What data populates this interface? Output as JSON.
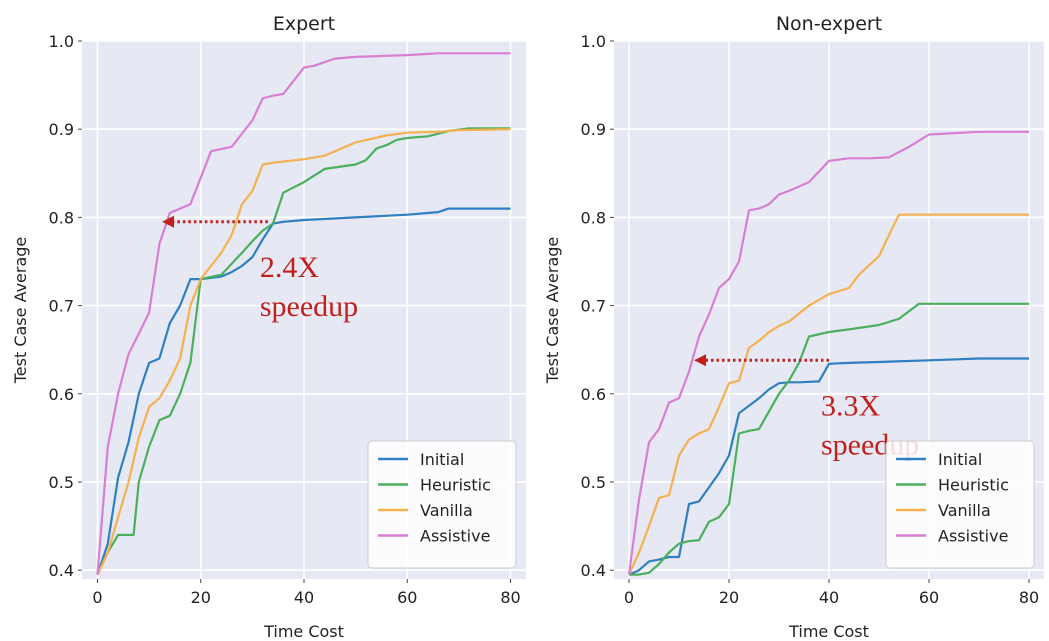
{
  "chart_data": [
    {
      "type": "line",
      "title": "Expert",
      "xlabel": "Time Cost",
      "ylabel": "Test Case Average",
      "xlim": [
        -3,
        83
      ],
      "ylim": [
        0.39,
        1.0
      ],
      "xticks": [
        0,
        20,
        40,
        60,
        80
      ],
      "yticks": [
        0.4,
        0.5,
        0.6,
        0.7,
        0.8,
        0.9,
        1.0
      ],
      "grid": true,
      "legend_position": "lower right",
      "series": [
        {
          "name": "Initial",
          "color": "#2f7fc1",
          "x": [
            0,
            2,
            4,
            6,
            8,
            10,
            12,
            14,
            16,
            18,
            20,
            24,
            26,
            28,
            30,
            32,
            34,
            36,
            40,
            50,
            60,
            66,
            68,
            70,
            80
          ],
          "y": [
            0.395,
            0.43,
            0.505,
            0.545,
            0.6,
            0.635,
            0.64,
            0.68,
            0.7,
            0.73,
            0.73,
            0.733,
            0.738,
            0.745,
            0.755,
            0.775,
            0.793,
            0.795,
            0.797,
            0.8,
            0.803,
            0.806,
            0.81,
            0.81,
            0.81
          ]
        },
        {
          "name": "Heuristic",
          "color": "#4caf5d",
          "x": [
            0,
            2,
            4,
            6,
            7,
            8,
            10,
            12,
            14,
            16,
            18,
            20,
            24,
            28,
            30,
            32,
            34,
            36,
            40,
            44,
            50,
            52,
            54,
            56,
            58,
            60,
            64,
            68,
            72,
            80
          ],
          "y": [
            0.395,
            0.42,
            0.44,
            0.44,
            0.44,
            0.5,
            0.54,
            0.57,
            0.575,
            0.6,
            0.635,
            0.73,
            0.735,
            0.76,
            0.773,
            0.785,
            0.793,
            0.828,
            0.84,
            0.855,
            0.86,
            0.865,
            0.878,
            0.882,
            0.888,
            0.89,
            0.892,
            0.898,
            0.901,
            0.901
          ]
        },
        {
          "name": "Vanilla",
          "color": "#f5b050",
          "x": [
            0,
            2,
            4,
            6,
            8,
            10,
            12,
            14,
            16,
            18,
            20,
            24,
            26,
            28,
            30,
            32,
            34,
            40,
            44,
            50,
            56,
            60,
            66,
            70,
            80
          ],
          "y": [
            0.395,
            0.42,
            0.46,
            0.5,
            0.55,
            0.585,
            0.595,
            0.615,
            0.64,
            0.7,
            0.73,
            0.76,
            0.78,
            0.815,
            0.83,
            0.86,
            0.862,
            0.866,
            0.87,
            0.885,
            0.893,
            0.896,
            0.897,
            0.899,
            0.9
          ]
        },
        {
          "name": "Assistive",
          "color": "#d77fd2",
          "x": [
            0,
            2,
            4,
            6,
            8,
            10,
            12,
            14,
            16,
            18,
            20,
            22,
            26,
            30,
            32,
            34,
            36,
            38,
            40,
            42,
            46,
            50,
            60,
            66,
            70,
            80
          ],
          "y": [
            0.395,
            0.54,
            0.6,
            0.645,
            0.668,
            0.692,
            0.77,
            0.805,
            0.81,
            0.815,
            0.845,
            0.875,
            0.88,
            0.91,
            0.935,
            0.938,
            0.94,
            0.955,
            0.97,
            0.972,
            0.98,
            0.982,
            0.984,
            0.986,
            0.986,
            0.986
          ]
        }
      ],
      "annotations": [
        {
          "line1": "2.4X",
          "line2": "speedup",
          "color": "#c0211d",
          "arrow_from": [
            33,
            0.795
          ],
          "arrow_to": [
            12.5,
            0.795
          ]
        }
      ]
    },
    {
      "type": "line",
      "title": "Non-expert",
      "xlabel": "Time Cost",
      "ylabel": "Test Case Average",
      "xlim": [
        -3,
        83
      ],
      "ylim": [
        0.39,
        1.0
      ],
      "xticks": [
        0,
        20,
        40,
        60,
        80
      ],
      "yticks": [
        0.4,
        0.5,
        0.6,
        0.7,
        0.8,
        0.9,
        1.0
      ],
      "grid": true,
      "legend_position": "lower right",
      "series": [
        {
          "name": "Initial",
          "color": "#2f7fc1",
          "x": [
            0,
            2,
            4,
            6,
            8,
            10,
            12,
            14,
            18,
            20,
            22,
            26,
            28,
            30,
            32,
            34,
            38,
            40,
            44,
            50,
            60,
            70,
            80
          ],
          "y": [
            0.395,
            0.4,
            0.41,
            0.412,
            0.415,
            0.415,
            0.475,
            0.478,
            0.51,
            0.53,
            0.578,
            0.595,
            0.605,
            0.612,
            0.613,
            0.613,
            0.614,
            0.634,
            0.635,
            0.636,
            0.638,
            0.64,
            0.64
          ]
        },
        {
          "name": "Heuristic",
          "color": "#4caf5d",
          "x": [
            0,
            2,
            4,
            6,
            8,
            10,
            12,
            14,
            16,
            18,
            20,
            22,
            24,
            26,
            28,
            30,
            32,
            34,
            36,
            40,
            44,
            50,
            54,
            58,
            60,
            64,
            80
          ],
          "y": [
            0.395,
            0.395,
            0.397,
            0.407,
            0.42,
            0.43,
            0.433,
            0.434,
            0.455,
            0.46,
            0.475,
            0.555,
            0.558,
            0.56,
            0.58,
            0.6,
            0.615,
            0.635,
            0.665,
            0.67,
            0.673,
            0.678,
            0.685,
            0.702,
            0.702,
            0.702,
            0.702
          ]
        },
        {
          "name": "Vanilla",
          "color": "#f5b050",
          "x": [
            0,
            2,
            4,
            6,
            8,
            10,
            12,
            14,
            16,
            18,
            20,
            22,
            24,
            26,
            28,
            30,
            32,
            36,
            40,
            44,
            46,
            50,
            52,
            54,
            60,
            80
          ],
          "y": [
            0.395,
            0.42,
            0.45,
            0.482,
            0.485,
            0.53,
            0.548,
            0.555,
            0.56,
            0.585,
            0.612,
            0.615,
            0.652,
            0.66,
            0.67,
            0.677,
            0.682,
            0.7,
            0.713,
            0.72,
            0.735,
            0.756,
            0.78,
            0.803,
            0.803,
            0.803
          ]
        },
        {
          "name": "Assistive",
          "color": "#d77fd2",
          "x": [
            0,
            2,
            4,
            6,
            8,
            10,
            12,
            14,
            16,
            18,
            20,
            22,
            24,
            26,
            28,
            30,
            32,
            34,
            36,
            40,
            44,
            48,
            52,
            56,
            60,
            70,
            80
          ],
          "y": [
            0.395,
            0.48,
            0.545,
            0.56,
            0.59,
            0.595,
            0.625,
            0.665,
            0.69,
            0.72,
            0.73,
            0.75,
            0.808,
            0.81,
            0.815,
            0.826,
            0.83,
            0.835,
            0.84,
            0.864,
            0.867,
            0.867,
            0.868,
            0.88,
            0.894,
            0.897,
            0.897
          ]
        }
      ],
      "annotations": [
        {
          "line1": "3.3X",
          "line2": "speedup",
          "color": "#c0211d",
          "arrow_from": [
            40,
            0.638
          ],
          "arrow_to": [
            13,
            0.638
          ]
        }
      ]
    }
  ]
}
